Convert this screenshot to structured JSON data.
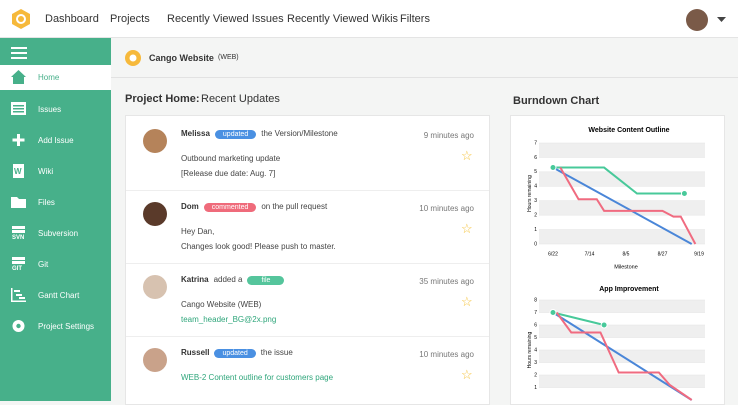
{
  "nav": {
    "items": [
      "Dashboard",
      "Projects",
      "Recently Viewed Issues",
      "Recently Viewed Wikis",
      "Filters"
    ]
  },
  "sidebar": {
    "items": [
      {
        "label": "Home"
      },
      {
        "label": "Issues"
      },
      {
        "label": "Add Issue"
      },
      {
        "label": "Wiki",
        "icon_text": "W"
      },
      {
        "label": "Files"
      },
      {
        "label": "Subversion",
        "icon_text": "SVN"
      },
      {
        "label": "Git",
        "icon_text": "GIT"
      },
      {
        "label": "Gantt Chart"
      },
      {
        "label": "Project Settings"
      }
    ]
  },
  "project": {
    "name": "Cango Website",
    "key": "(WEB)"
  },
  "updates": {
    "title_bold": "Project Home:",
    "title": "Recent Updates",
    "items": [
      {
        "user": "Melissa",
        "badge": "updated",
        "action": "the Version/Milestone",
        "time": "9 minutes ago",
        "lines": [
          "Outbound marketing update",
          "[Release due date: Aug. 7]"
        ]
      },
      {
        "user": "Dom",
        "badge": "commented",
        "action": "on the pull request",
        "time": "10 minutes ago",
        "lines": [
          "Hey Dan,",
          "Changes look good! Please push to master."
        ]
      },
      {
        "user": "Katrina",
        "pre": "added a",
        "badge": "file",
        "time": "35 minutes ago",
        "lines": [
          "Cango Website (WEB)"
        ],
        "link": "team_header_BG@2x.png"
      },
      {
        "user": "Russell",
        "badge": "updated",
        "action": "the issue",
        "time": "10 minutes ago",
        "link": "WEB-2 Content outline for customers page"
      }
    ]
  },
  "burndown": {
    "title": "Burndown Chart",
    "charts": [
      {
        "type": "line",
        "title": "Website Content Outline",
        "ylabel": "Hours remaining",
        "xlabel": "Milestone",
        "xlim": [
          0,
          4
        ],
        "ylim": [
          0,
          7
        ],
        "yticks": [
          0,
          1,
          2,
          3,
          4,
          5,
          6,
          7
        ],
        "xticks": [
          {
            "value": 0,
            "label": "6/22"
          },
          {
            "value": 1,
            "label": "7/14"
          },
          {
            "value": 2,
            "label": "8/5"
          },
          {
            "value": 3,
            "label": "8/27"
          },
          {
            "value": 4,
            "label": "9/19"
          }
        ],
        "series": [
          {
            "color": "#4a86d8",
            "x": [
              0,
              3.8
            ],
            "values": [
              5.3,
              0
            ],
            "markers": false
          },
          {
            "color": "#48c99a",
            "x": [
              0,
              1.4,
              2.3,
              3.6
            ],
            "values": [
              5.3,
              5.3,
              3.5,
              3.5
            ],
            "markers": true
          },
          {
            "color": "#f06b80",
            "x": [
              0.2,
              0.7,
              1.2,
              1.4,
              3.0,
              3.3,
              3.5,
              3.9
            ],
            "values": [
              5.3,
              3.1,
              3.1,
              2.3,
              2.3,
              1.9,
              1.9,
              0
            ],
            "markers": false
          }
        ]
      },
      {
        "type": "line",
        "title": "App Improvement",
        "ylabel": "Hours remaining",
        "xlim": [
          0,
          4
        ],
        "ylim": [
          0,
          8
        ],
        "yticks": [
          1,
          2,
          3,
          4,
          5,
          6,
          7,
          8
        ],
        "series": [
          {
            "color": "#4a86d8",
            "x": [
              0,
              3.8
            ],
            "values": [
              7,
              0
            ],
            "markers": false
          },
          {
            "color": "#48c99a",
            "x": [
              0,
              1.4
            ],
            "values": [
              7,
              6
            ],
            "markers": true
          },
          {
            "color": "#f06b80",
            "x": [
              0.1,
              0.5,
              1.3,
              1.8,
              2.9,
              3.2,
              3.8
            ],
            "values": [
              7,
              5.4,
              5.4,
              2.2,
              2.2,
              1.2,
              0
            ],
            "markers": false
          }
        ]
      }
    ]
  }
}
